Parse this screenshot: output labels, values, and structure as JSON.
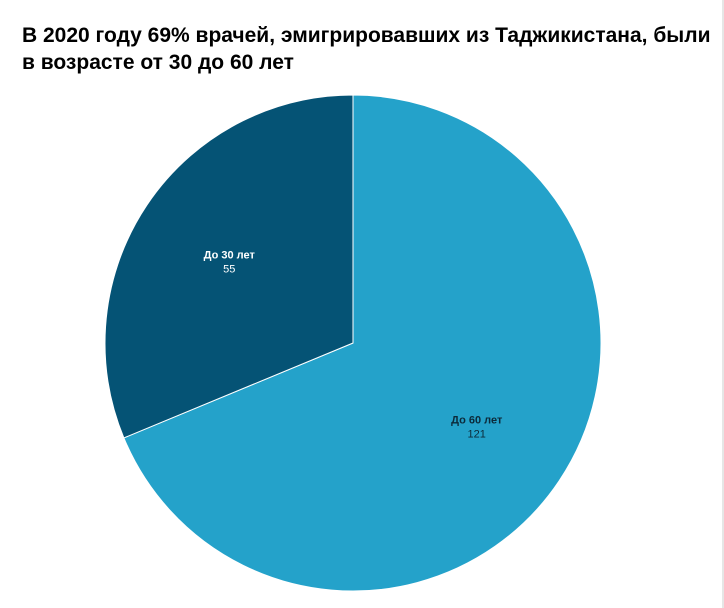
{
  "chart_data": {
    "type": "pie",
    "title": "В 2020 году 69% врачей, эмигрировавших из Таджикистана, были в возрасте от 30 до 60 лет",
    "slices": [
      {
        "label": "До 60 лет",
        "value": 121,
        "color": "#24a2ca",
        "text_color": "#0c2a3a"
      },
      {
        "label": "До 30 лет",
        "value": 55,
        "color": "#055375",
        "text_color": "#ffffff"
      }
    ],
    "legend": "none"
  }
}
